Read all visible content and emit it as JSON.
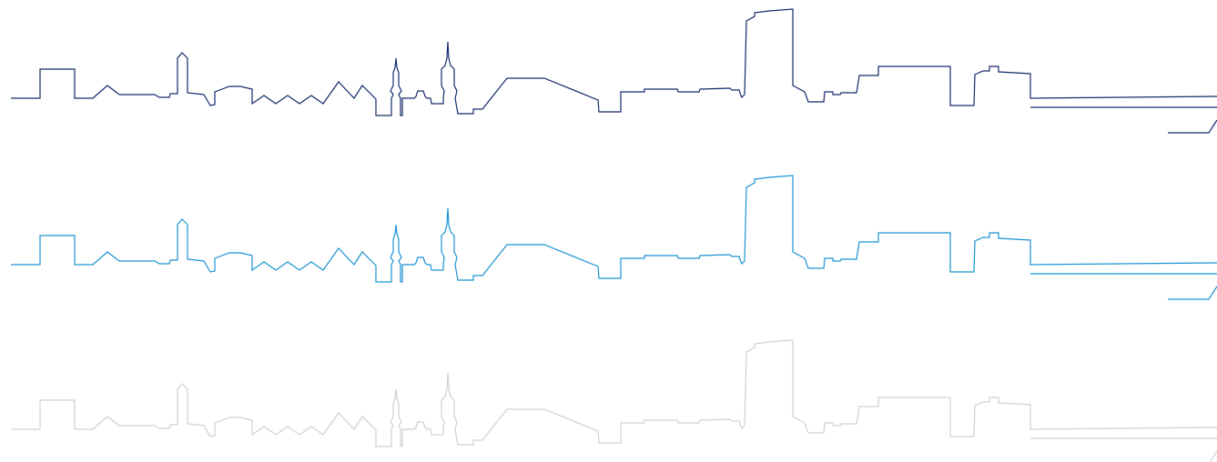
{
  "skylines": [
    {
      "name": "navy",
      "color": "#142a6b"
    },
    {
      "name": "blue",
      "color": "#1a93d2"
    },
    {
      "name": "gray",
      "color": "#d0d0d0"
    }
  ]
}
